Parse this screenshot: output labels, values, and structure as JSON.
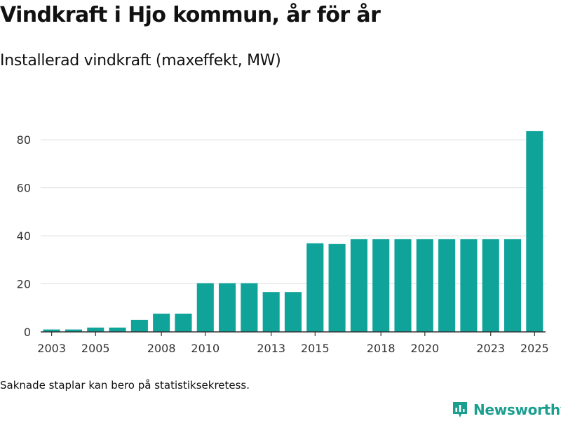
{
  "title": "Vindkraft i Hjo kommun, år för år",
  "subtitle": "Installerad vindkraft (maxeffekt, MW)",
  "footnote": "Saknade staplar kan bero på statistiksekretess.",
  "brand": {
    "name": "Newsworthy",
    "color": "#1a9e8e",
    "icon": "newsworthy-logo-icon"
  },
  "colors": {
    "bar": "#10a39a",
    "grid": "#dddddd",
    "axis": "#333333",
    "text": "#333333"
  },
  "chart_data": {
    "type": "bar",
    "title": "Vindkraft i Hjo kommun, år för år",
    "ylabel": "Installerad vindkraft (maxeffekt, MW)",
    "xlabel": "",
    "categories": [
      2003,
      2004,
      2005,
      2006,
      2007,
      2008,
      2009,
      2010,
      2011,
      2012,
      2013,
      2014,
      2015,
      2016,
      2017,
      2018,
      2019,
      2020,
      2021,
      2022,
      2023,
      2024,
      2025
    ],
    "values": [
      1.0,
      1.0,
      1.8,
      1.8,
      5.0,
      7.6,
      7.6,
      20.3,
      20.3,
      20.3,
      16.6,
      16.6,
      36.9,
      36.6,
      38.6,
      38.6,
      38.6,
      38.6,
      38.6,
      38.6,
      38.6,
      38.6,
      83.6
    ],
    "ylim": [
      0,
      90
    ],
    "yticks": [
      0,
      20,
      40,
      60,
      80
    ],
    "xticks": [
      2003,
      2005,
      2008,
      2010,
      2013,
      2015,
      2018,
      2020,
      2023,
      2025
    ],
    "grid": true
  }
}
